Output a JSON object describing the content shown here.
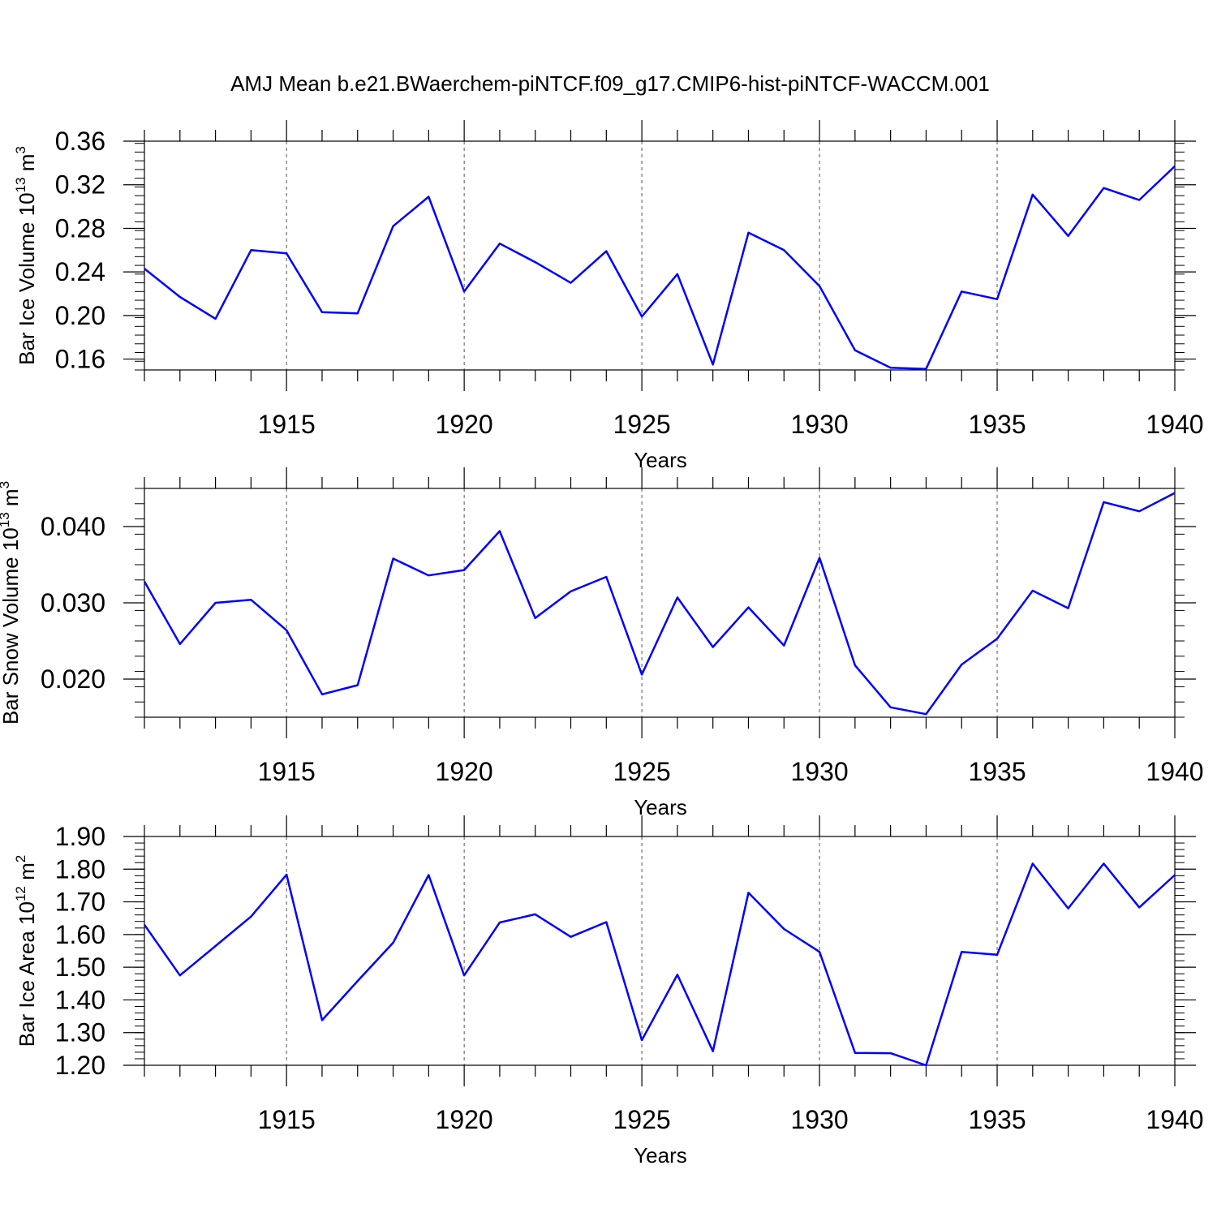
{
  "colors": {
    "series": "#0000ff",
    "axis": "#000000",
    "grid": "#555555"
  },
  "title": "AMJ Mean b.e21.BWaerchem-piNTCF.f09_g17.CMIP6-hist-piNTCF-WACCM.001",
  "chart_data": [
    {
      "type": "line",
      "ylabel": "Bar Ice Volume 10",
      "ylabel_exp": "13",
      "ylabel_unit": " m",
      "ylabel_unit_exp": "3",
      "xlabel": "Years",
      "xlim": [
        1911,
        1940
      ],
      "ylim": [
        0.15,
        0.36
      ],
      "yticks": [
        0.16,
        0.2,
        0.24,
        0.28,
        0.32,
        0.36
      ],
      "ytick_labels": [
        "0.16",
        "0.20",
        "0.24",
        "0.28",
        "0.32",
        "0.36"
      ],
      "yminor_step": 0.008,
      "xticks": [
        1915,
        1920,
        1925,
        1930,
        1935,
        1940
      ],
      "xtick_labels": [
        "1915",
        "1920",
        "1925",
        "1930",
        "1935",
        "1940"
      ],
      "grid": "dashed vertical at labeled x ticks",
      "series": [
        {
          "name": "Bar Ice Volume",
          "x": [
            1911,
            1912,
            1913,
            1914,
            1915,
            1916,
            1917,
            1918,
            1919,
            1920,
            1921,
            1922,
            1923,
            1924,
            1925,
            1926,
            1927,
            1928,
            1929,
            1930,
            1931,
            1932,
            1933,
            1934,
            1935,
            1936,
            1937,
            1938,
            1939,
            1940
          ],
          "values": [
            0.243,
            0.217,
            0.197,
            0.26,
            0.257,
            0.203,
            0.202,
            0.282,
            0.309,
            0.222,
            0.266,
            0.249,
            0.23,
            0.259,
            0.199,
            0.238,
            0.155,
            0.276,
            0.26,
            0.227,
            0.168,
            0.152,
            0.151,
            0.222,
            0.215,
            0.311,
            0.273,
            0.317,
            0.306,
            0.337
          ]
        }
      ]
    },
    {
      "type": "line",
      "ylabel": "Bar Snow Volume 10",
      "ylabel_exp": "13",
      "ylabel_unit": " m",
      "ylabel_unit_exp": "3",
      "xlabel": "Years",
      "xlim": [
        1911,
        1940
      ],
      "ylim": [
        0.015,
        0.045
      ],
      "yticks": [
        0.02,
        0.03,
        0.04
      ],
      "ytick_labels": [
        "0.020",
        "0.030",
        "0.040"
      ],
      "yminor_step": 0.002,
      "xticks": [
        1915,
        1920,
        1925,
        1930,
        1935,
        1940
      ],
      "xtick_labels": [
        "1915",
        "1920",
        "1925",
        "1930",
        "1935",
        "1940"
      ],
      "grid": "dashed vertical at labeled x ticks",
      "series": [
        {
          "name": "Bar Snow Volume",
          "x": [
            1911,
            1912,
            1913,
            1914,
            1915,
            1916,
            1917,
            1918,
            1919,
            1920,
            1921,
            1922,
            1923,
            1924,
            1925,
            1926,
            1927,
            1928,
            1929,
            1930,
            1931,
            1932,
            1933,
            1934,
            1935,
            1936,
            1937,
            1938,
            1939,
            1940
          ],
          "values": [
            0.0328,
            0.0246,
            0.03,
            0.0304,
            0.0264,
            0.018,
            0.0192,
            0.0358,
            0.0336,
            0.0343,
            0.0394,
            0.028,
            0.0315,
            0.0334,
            0.0206,
            0.0307,
            0.0242,
            0.0294,
            0.0244,
            0.0359,
            0.0218,
            0.0163,
            0.0154,
            0.0219,
            0.0253,
            0.0316,
            0.0293,
            0.0432,
            0.042,
            0.0444
          ]
        }
      ]
    },
    {
      "type": "line",
      "ylabel": "Bar Ice Area 10",
      "ylabel_exp": "12",
      "ylabel_unit": " m",
      "ylabel_unit_exp": "2",
      "xlabel": "Years",
      "xlim": [
        1911,
        1940
      ],
      "ylim": [
        1.2,
        1.9
      ],
      "yticks": [
        1.2,
        1.3,
        1.4,
        1.5,
        1.6,
        1.7,
        1.8,
        1.9
      ],
      "ytick_labels": [
        "1.20",
        "1.30",
        "1.40",
        "1.50",
        "1.60",
        "1.70",
        "1.80",
        "1.90"
      ],
      "yminor_step": 0.02,
      "xticks": [
        1915,
        1920,
        1925,
        1930,
        1935,
        1940
      ],
      "xtick_labels": [
        "1915",
        "1920",
        "1925",
        "1930",
        "1935",
        "1940"
      ],
      "grid": "dashed vertical at labeled x ticks",
      "series": [
        {
          "name": "Bar Ice Area",
          "x": [
            1911,
            1912,
            1913,
            1914,
            1915,
            1916,
            1917,
            1918,
            1919,
            1920,
            1921,
            1922,
            1923,
            1924,
            1925,
            1926,
            1927,
            1928,
            1929,
            1930,
            1931,
            1932,
            1933,
            1934,
            1935,
            1936,
            1937,
            1938,
            1939,
            1940
          ],
          "values": [
            1.63,
            1.475,
            1.565,
            1.655,
            1.783,
            1.338,
            1.458,
            1.575,
            1.782,
            1.475,
            1.637,
            1.662,
            1.593,
            1.638,
            1.277,
            1.477,
            1.243,
            1.728,
            1.617,
            1.547,
            1.238,
            1.237,
            1.2,
            1.547,
            1.538,
            1.817,
            1.68,
            1.817,
            1.683,
            1.782
          ]
        }
      ]
    }
  ]
}
